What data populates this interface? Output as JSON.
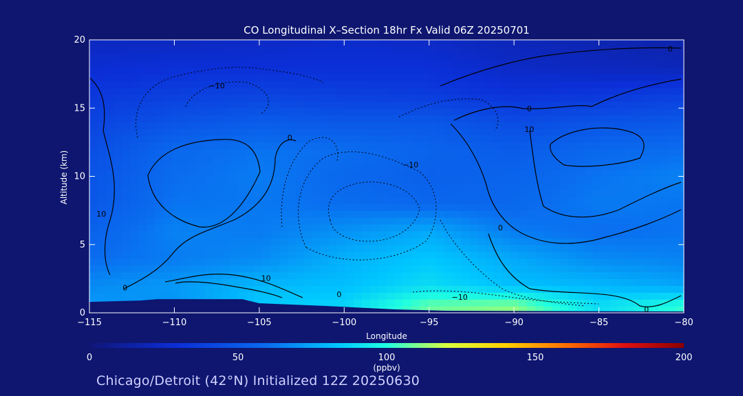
{
  "chart_data": {
    "type": "heatmap",
    "title": "CO Longitudinal X–Section 18hr  Fx Valid 06Z 20250701",
    "xlabel": "Longitude",
    "ylabel": "Altitude (km)",
    "subtitle": "Chicago/Detroit (42°N) Initialized 12Z 20250630",
    "colorbar": {
      "label": "(ppbv)",
      "range": [
        0,
        200
      ],
      "ticks": [
        "0",
        "50",
        "100",
        "150",
        "200"
      ]
    },
    "xlim": [
      -115,
      -80
    ],
    "ylim": [
      0,
      20
    ],
    "x_ticks": [
      "−115",
      "−110",
      "−105",
      "−100",
      "−95",
      "−90",
      "−85",
      "−80"
    ],
    "y_ticks": [
      "0",
      "5",
      "10",
      "15",
      "20"
    ],
    "grid": false,
    "longitudes": [
      -115,
      -110,
      -105,
      -100,
      -95,
      -90,
      -85,
      -80
    ],
    "altitudes": [
      0.5,
      2,
      4,
      6,
      8,
      10,
      12,
      14,
      16,
      18,
      20
    ],
    "co_ppbv": [
      [
        72,
        70,
        85,
        88,
        108,
        112,
        90,
        102
      ],
      [
        68,
        72,
        80,
        82,
        90,
        82,
        80,
        75
      ],
      [
        60,
        64,
        68,
        78,
        84,
        76,
        68,
        66
      ],
      [
        55,
        66,
        64,
        70,
        76,
        64,
        60,
        62
      ],
      [
        50,
        62,
        63,
        60,
        58,
        58,
        64,
        62
      ],
      [
        48,
        60,
        64,
        58,
        54,
        56,
        62,
        66
      ],
      [
        45,
        58,
        62,
        60,
        56,
        52,
        58,
        60
      ],
      [
        40,
        48,
        52,
        50,
        50,
        44,
        48,
        50
      ],
      [
        34,
        38,
        40,
        38,
        36,
        32,
        34,
        38
      ],
      [
        28,
        30,
        30,
        30,
        30,
        24,
        22,
        20
      ],
      [
        22,
        22,
        24,
        26,
        24,
        20,
        18,
        16
      ]
    ],
    "terrain_km": [
      {
        "lon": -115,
        "alt": 0.8
      },
      {
        "lon": -112,
        "alt": 0.9
      },
      {
        "lon": -111,
        "alt": 1.0
      },
      {
        "lon": -106,
        "alt": 1.0
      },
      {
        "lon": -105,
        "alt": 0.7
      },
      {
        "lon": -101,
        "alt": 0.5
      },
      {
        "lon": -97,
        "alt": 0.25
      },
      {
        "lon": -94,
        "alt": 0.15
      },
      {
        "lon": -80,
        "alt": 0.1
      }
    ],
    "contour_labels": [
      {
        "text": "−10",
        "lon": -107.5,
        "alt": 16.6
      },
      {
        "text": "0",
        "lon": -103.2,
        "alt": 12.8
      },
      {
        "text": "−10",
        "lon": -96.1,
        "alt": 10.8
      },
      {
        "text": "0",
        "lon": -89.1,
        "alt": 14.9
      },
      {
        "text": "10",
        "lon": -89.1,
        "alt": 13.4
      },
      {
        "text": "0",
        "lon": -80.8,
        "alt": 19.3
      },
      {
        "text": "0",
        "lon": -90.8,
        "alt": 6.2
      },
      {
        "text": "10",
        "lon": -114.3,
        "alt": 7.2
      },
      {
        "text": "0",
        "lon": -112.9,
        "alt": 1.8
      },
      {
        "text": "10",
        "lon": -104.6,
        "alt": 2.5
      },
      {
        "text": "0",
        "lon": -100.3,
        "alt": 1.3
      },
      {
        "text": "−10",
        "lon": -93.2,
        "alt": 1.1
      },
      {
        "text": "0",
        "lon": -82.2,
        "alt": 0.2
      }
    ]
  }
}
